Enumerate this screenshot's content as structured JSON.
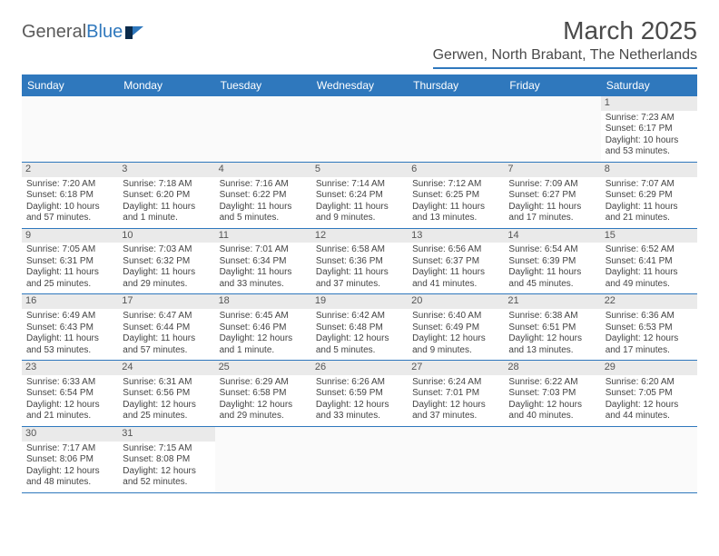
{
  "logo": {
    "text1": "General",
    "text2": "Blue"
  },
  "title": "March 2025",
  "location": "Gerwen, North Brabant, The Netherlands",
  "colors": {
    "brand": "#2f78bd",
    "headerText": "#4a4a4a",
    "cellText": "#444444",
    "dayNumBg": "#eaeaea"
  },
  "dayNames": [
    "Sunday",
    "Monday",
    "Tuesday",
    "Wednesday",
    "Thursday",
    "Friday",
    "Saturday"
  ],
  "weeks": [
    [
      null,
      null,
      null,
      null,
      null,
      null,
      {
        "n": "1",
        "sr": "Sunrise: 7:23 AM",
        "ss": "Sunset: 6:17 PM",
        "dl1": "Daylight: 10 hours",
        "dl2": "and 53 minutes."
      }
    ],
    [
      {
        "n": "2",
        "sr": "Sunrise: 7:20 AM",
        "ss": "Sunset: 6:18 PM",
        "dl1": "Daylight: 10 hours",
        "dl2": "and 57 minutes."
      },
      {
        "n": "3",
        "sr": "Sunrise: 7:18 AM",
        "ss": "Sunset: 6:20 PM",
        "dl1": "Daylight: 11 hours",
        "dl2": "and 1 minute."
      },
      {
        "n": "4",
        "sr": "Sunrise: 7:16 AM",
        "ss": "Sunset: 6:22 PM",
        "dl1": "Daylight: 11 hours",
        "dl2": "and 5 minutes."
      },
      {
        "n": "5",
        "sr": "Sunrise: 7:14 AM",
        "ss": "Sunset: 6:24 PM",
        "dl1": "Daylight: 11 hours",
        "dl2": "and 9 minutes."
      },
      {
        "n": "6",
        "sr": "Sunrise: 7:12 AM",
        "ss": "Sunset: 6:25 PM",
        "dl1": "Daylight: 11 hours",
        "dl2": "and 13 minutes."
      },
      {
        "n": "7",
        "sr": "Sunrise: 7:09 AM",
        "ss": "Sunset: 6:27 PM",
        "dl1": "Daylight: 11 hours",
        "dl2": "and 17 minutes."
      },
      {
        "n": "8",
        "sr": "Sunrise: 7:07 AM",
        "ss": "Sunset: 6:29 PM",
        "dl1": "Daylight: 11 hours",
        "dl2": "and 21 minutes."
      }
    ],
    [
      {
        "n": "9",
        "sr": "Sunrise: 7:05 AM",
        "ss": "Sunset: 6:31 PM",
        "dl1": "Daylight: 11 hours",
        "dl2": "and 25 minutes."
      },
      {
        "n": "10",
        "sr": "Sunrise: 7:03 AM",
        "ss": "Sunset: 6:32 PM",
        "dl1": "Daylight: 11 hours",
        "dl2": "and 29 minutes."
      },
      {
        "n": "11",
        "sr": "Sunrise: 7:01 AM",
        "ss": "Sunset: 6:34 PM",
        "dl1": "Daylight: 11 hours",
        "dl2": "and 33 minutes."
      },
      {
        "n": "12",
        "sr": "Sunrise: 6:58 AM",
        "ss": "Sunset: 6:36 PM",
        "dl1": "Daylight: 11 hours",
        "dl2": "and 37 minutes."
      },
      {
        "n": "13",
        "sr": "Sunrise: 6:56 AM",
        "ss": "Sunset: 6:37 PM",
        "dl1": "Daylight: 11 hours",
        "dl2": "and 41 minutes."
      },
      {
        "n": "14",
        "sr": "Sunrise: 6:54 AM",
        "ss": "Sunset: 6:39 PM",
        "dl1": "Daylight: 11 hours",
        "dl2": "and 45 minutes."
      },
      {
        "n": "15",
        "sr": "Sunrise: 6:52 AM",
        "ss": "Sunset: 6:41 PM",
        "dl1": "Daylight: 11 hours",
        "dl2": "and 49 minutes."
      }
    ],
    [
      {
        "n": "16",
        "sr": "Sunrise: 6:49 AM",
        "ss": "Sunset: 6:43 PM",
        "dl1": "Daylight: 11 hours",
        "dl2": "and 53 minutes."
      },
      {
        "n": "17",
        "sr": "Sunrise: 6:47 AM",
        "ss": "Sunset: 6:44 PM",
        "dl1": "Daylight: 11 hours",
        "dl2": "and 57 minutes."
      },
      {
        "n": "18",
        "sr": "Sunrise: 6:45 AM",
        "ss": "Sunset: 6:46 PM",
        "dl1": "Daylight: 12 hours",
        "dl2": "and 1 minute."
      },
      {
        "n": "19",
        "sr": "Sunrise: 6:42 AM",
        "ss": "Sunset: 6:48 PM",
        "dl1": "Daylight: 12 hours",
        "dl2": "and 5 minutes."
      },
      {
        "n": "20",
        "sr": "Sunrise: 6:40 AM",
        "ss": "Sunset: 6:49 PM",
        "dl1": "Daylight: 12 hours",
        "dl2": "and 9 minutes."
      },
      {
        "n": "21",
        "sr": "Sunrise: 6:38 AM",
        "ss": "Sunset: 6:51 PM",
        "dl1": "Daylight: 12 hours",
        "dl2": "and 13 minutes."
      },
      {
        "n": "22",
        "sr": "Sunrise: 6:36 AM",
        "ss": "Sunset: 6:53 PM",
        "dl1": "Daylight: 12 hours",
        "dl2": "and 17 minutes."
      }
    ],
    [
      {
        "n": "23",
        "sr": "Sunrise: 6:33 AM",
        "ss": "Sunset: 6:54 PM",
        "dl1": "Daylight: 12 hours",
        "dl2": "and 21 minutes."
      },
      {
        "n": "24",
        "sr": "Sunrise: 6:31 AM",
        "ss": "Sunset: 6:56 PM",
        "dl1": "Daylight: 12 hours",
        "dl2": "and 25 minutes."
      },
      {
        "n": "25",
        "sr": "Sunrise: 6:29 AM",
        "ss": "Sunset: 6:58 PM",
        "dl1": "Daylight: 12 hours",
        "dl2": "and 29 minutes."
      },
      {
        "n": "26",
        "sr": "Sunrise: 6:26 AM",
        "ss": "Sunset: 6:59 PM",
        "dl1": "Daylight: 12 hours",
        "dl2": "and 33 minutes."
      },
      {
        "n": "27",
        "sr": "Sunrise: 6:24 AM",
        "ss": "Sunset: 7:01 PM",
        "dl1": "Daylight: 12 hours",
        "dl2": "and 37 minutes."
      },
      {
        "n": "28",
        "sr": "Sunrise: 6:22 AM",
        "ss": "Sunset: 7:03 PM",
        "dl1": "Daylight: 12 hours",
        "dl2": "and 40 minutes."
      },
      {
        "n": "29",
        "sr": "Sunrise: 6:20 AM",
        "ss": "Sunset: 7:05 PM",
        "dl1": "Daylight: 12 hours",
        "dl2": "and 44 minutes."
      }
    ],
    [
      {
        "n": "30",
        "sr": "Sunrise: 7:17 AM",
        "ss": "Sunset: 8:06 PM",
        "dl1": "Daylight: 12 hours",
        "dl2": "and 48 minutes."
      },
      {
        "n": "31",
        "sr": "Sunrise: 7:15 AM",
        "ss": "Sunset: 8:08 PM",
        "dl1": "Daylight: 12 hours",
        "dl2": "and 52 minutes."
      },
      null,
      null,
      null,
      null,
      null
    ]
  ]
}
